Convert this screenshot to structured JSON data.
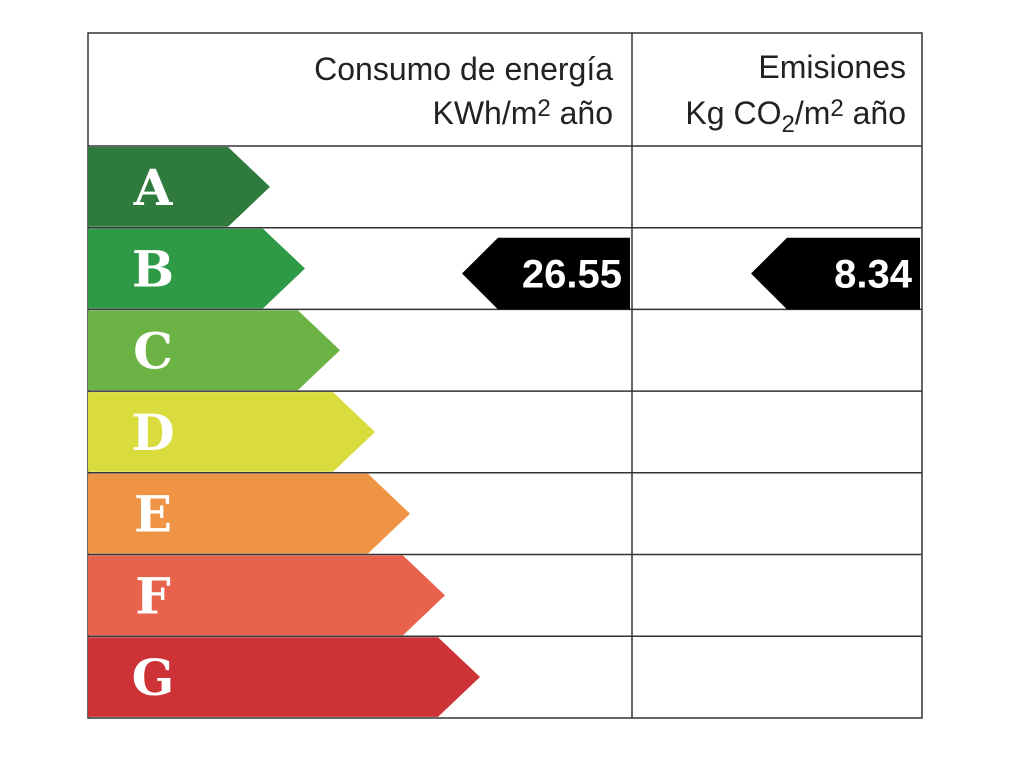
{
  "header": {
    "energy": {
      "title": "Consumo de energía",
      "unit": [
        "KWh/m",
        "2",
        " año"
      ]
    },
    "emissions": {
      "title": "Emisiones",
      "unit": [
        "Kg CO",
        "2",
        "/m",
        "2",
        " año"
      ]
    }
  },
  "ratings": [
    {
      "letter": "A",
      "color": "#2f7a3d"
    },
    {
      "letter": "B",
      "color": "#2e9a46"
    },
    {
      "letter": "C",
      "color": "#6bb344"
    },
    {
      "letter": "D",
      "color": "#d9dc3c"
    },
    {
      "letter": "E",
      "color": "#ef9444"
    },
    {
      "letter": "F",
      "color": "#e9634c"
    },
    {
      "letter": "G",
      "color": "#cc3236"
    }
  ],
  "indicators": {
    "energy": {
      "value": "26.55",
      "rating": "B"
    },
    "emissions": {
      "value": "8.34",
      "rating": "B"
    }
  }
}
